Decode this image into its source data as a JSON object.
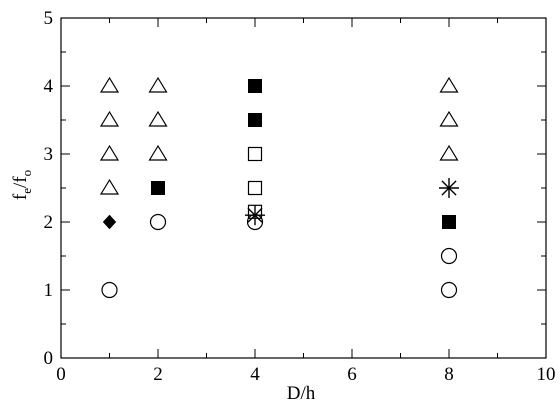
{
  "chart_data": {
    "type": "scatter",
    "xlabel": "D/h",
    "ylabel": {
      "main_1": "f",
      "sub_1": "e",
      "slash": "/f",
      "sub_2": "o"
    },
    "xlim": [
      0,
      10
    ],
    "ylim": [
      0,
      5
    ],
    "xticks": [
      "0",
      "2",
      "4",
      "6",
      "8",
      "10"
    ],
    "yticks": [
      "0",
      "1",
      "2",
      "3",
      "4",
      "5"
    ],
    "grid": false,
    "series": [
      {
        "marker": "open-triangle",
        "x": [
          1,
          1,
          1,
          1,
          2,
          2,
          2,
          8,
          8,
          8
        ],
        "y": [
          2.5,
          3,
          3.5,
          4,
          3,
          3.5,
          4,
          3,
          3.5,
          4
        ]
      },
      {
        "marker": "open-circle",
        "x": [
          1,
          2,
          4,
          8,
          8
        ],
        "y": [
          1,
          2,
          2,
          1,
          1.5
        ]
      },
      {
        "marker": "filled-diamond",
        "x": [
          1
        ],
        "y": [
          2
        ]
      },
      {
        "marker": "filled-square",
        "x": [
          2,
          4,
          4,
          8
        ],
        "y": [
          2.5,
          3.5,
          4,
          2
        ]
      },
      {
        "marker": "open-square",
        "x": [
          4,
          4,
          4
        ],
        "y": [
          2.15,
          2.5,
          3
        ]
      },
      {
        "marker": "asterisk",
        "x": [
          4,
          8
        ],
        "y": [
          2.1,
          2.5
        ]
      }
    ]
  }
}
